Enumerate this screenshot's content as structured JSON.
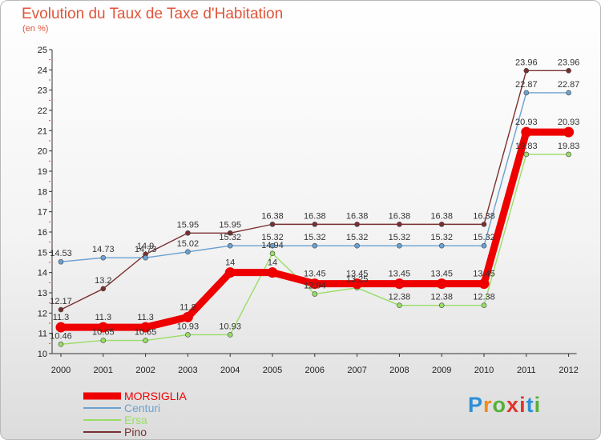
{
  "title": "Evolution du Taux de Taxe d'Habitation",
  "subtitle": "(en %)",
  "logo": [
    "P",
    "r",
    "o",
    "x",
    "i",
    "t",
    "i"
  ],
  "logo_colors": [
    "#2d8fd8",
    "#f08a1c",
    "#55b03a",
    "#e2342a",
    "#e2342a",
    "#2d8fd8",
    "#55b03a"
  ],
  "chart_data": {
    "type": "line",
    "x": [
      2000,
      2001,
      2002,
      2003,
      2004,
      2005,
      2006,
      2007,
      2008,
      2009,
      2010,
      2011,
      2012
    ],
    "ylim": [
      10,
      25
    ],
    "yticks": [
      10,
      11,
      12,
      13,
      14,
      15,
      16,
      17,
      18,
      19,
      20,
      21,
      22,
      23,
      24,
      25
    ],
    "grid": false,
    "legend": "bottom-left",
    "series": [
      {
        "name": "MORSIGLIA",
        "color": "#ee0000",
        "values": [
          11.3,
          11.3,
          11.3,
          11.8,
          14,
          14,
          13.45,
          13.45,
          13.45,
          13.45,
          13.45,
          20.93,
          20.93
        ],
        "labels": [
          "11.3",
          "11.3",
          "11.3",
          "11.8",
          "14",
          "14",
          "13.45",
          "13.45",
          "13.45",
          "13.45",
          "13.45",
          "20.93",
          "20.93"
        ]
      },
      {
        "name": "Centuri",
        "color": "#6aa1d0",
        "values": [
          14.53,
          14.73,
          14.73,
          15.02,
          15.32,
          15.32,
          15.32,
          15.32,
          15.32,
          15.32,
          15.32,
          22.87,
          22.87
        ],
        "labels": [
          "14.53",
          "14.73",
          "14.73",
          "15.02",
          "15.32",
          "15.32",
          "15.32",
          "15.32",
          "15.32",
          "15.32",
          "15.32",
          "22.87",
          "22.87"
        ]
      },
      {
        "name": "Ersa",
        "color": "#99dd66",
        "values": [
          10.46,
          10.65,
          10.65,
          10.93,
          10.93,
          14.94,
          12.94,
          13.25,
          12.38,
          12.38,
          12.38,
          19.83,
          19.83
        ],
        "labels": [
          "10.46",
          "10.65",
          "10.65",
          "10.93",
          "10.93",
          "14.94",
          "12.94",
          "13.25",
          "12.38",
          "12.38",
          "12.38",
          "19.83",
          "19.83"
        ]
      },
      {
        "name": "Pino",
        "color": "#7a2f2f",
        "values": [
          12.17,
          13.2,
          14.9,
          15.95,
          15.95,
          16.38,
          16.38,
          16.38,
          16.38,
          16.38,
          16.38,
          23.96,
          23.96
        ],
        "labels": [
          "12.17",
          "13.2",
          "14.9",
          "15.95",
          "15.95",
          "16.38",
          "16.38",
          "16.38",
          "16.38",
          "16.38",
          "16.38",
          "23.96",
          "23.96"
        ]
      }
    ]
  }
}
